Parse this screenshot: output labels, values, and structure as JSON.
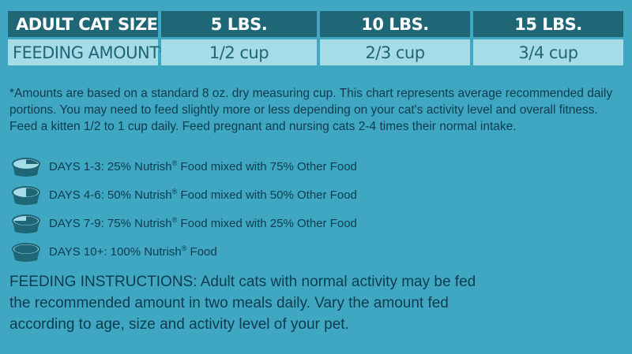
{
  "table": {
    "header": [
      "ADULT CAT SIZE",
      "5 LBS.",
      "10 LBS.",
      "15 LBS."
    ],
    "row": [
      "FEEDING AMOUNT*",
      "1/2 cup",
      "2/3 cup",
      "3/4 cup"
    ]
  },
  "note": "*Amounts are based on a standard 8 oz. dry measuring cup. This chart represents average recommended daily portions. You may need to feed slightly more or less depending on your cat's activity level and overall fitness. Feed a kitten 1/2 to 1 cup daily. Feed pregnant and nursing cats 2-4 times their normal intake.",
  "transition": [
    {
      "pre": "DAYS 1-3: 25% Nutrish",
      "mark": "®",
      "post": " Food mixed with 75% Other Food",
      "fill": 0.25
    },
    {
      "pre": "DAYS 4-6: 50% Nutrish",
      "mark": "®",
      "post": " Food mixed with 50% Other Food",
      "fill": 0.5
    },
    {
      "pre": "DAYS 7-9: 75% Nutrish",
      "mark": "®",
      "post": " Food mixed with 25% Other Food",
      "fill": 0.75
    },
    {
      "pre": "DAYS 10+: 100% Nutrish",
      "mark": "®",
      "post": " Food",
      "fill": 1.0
    }
  ],
  "instructions": "FEEDING INSTRUCTIONS: Adult cats with normal activity may be fed the recommended amount in two meals daily. Vary the amount fed according to age, size and activity level of your pet.",
  "colors": {
    "background": "#3fa7c2",
    "header": "#1f6676",
    "value_cell": "#a6dbe8",
    "text": "#0d3c4f",
    "bowl": "#1f6676",
    "other_food": "#a6dbe8"
  }
}
